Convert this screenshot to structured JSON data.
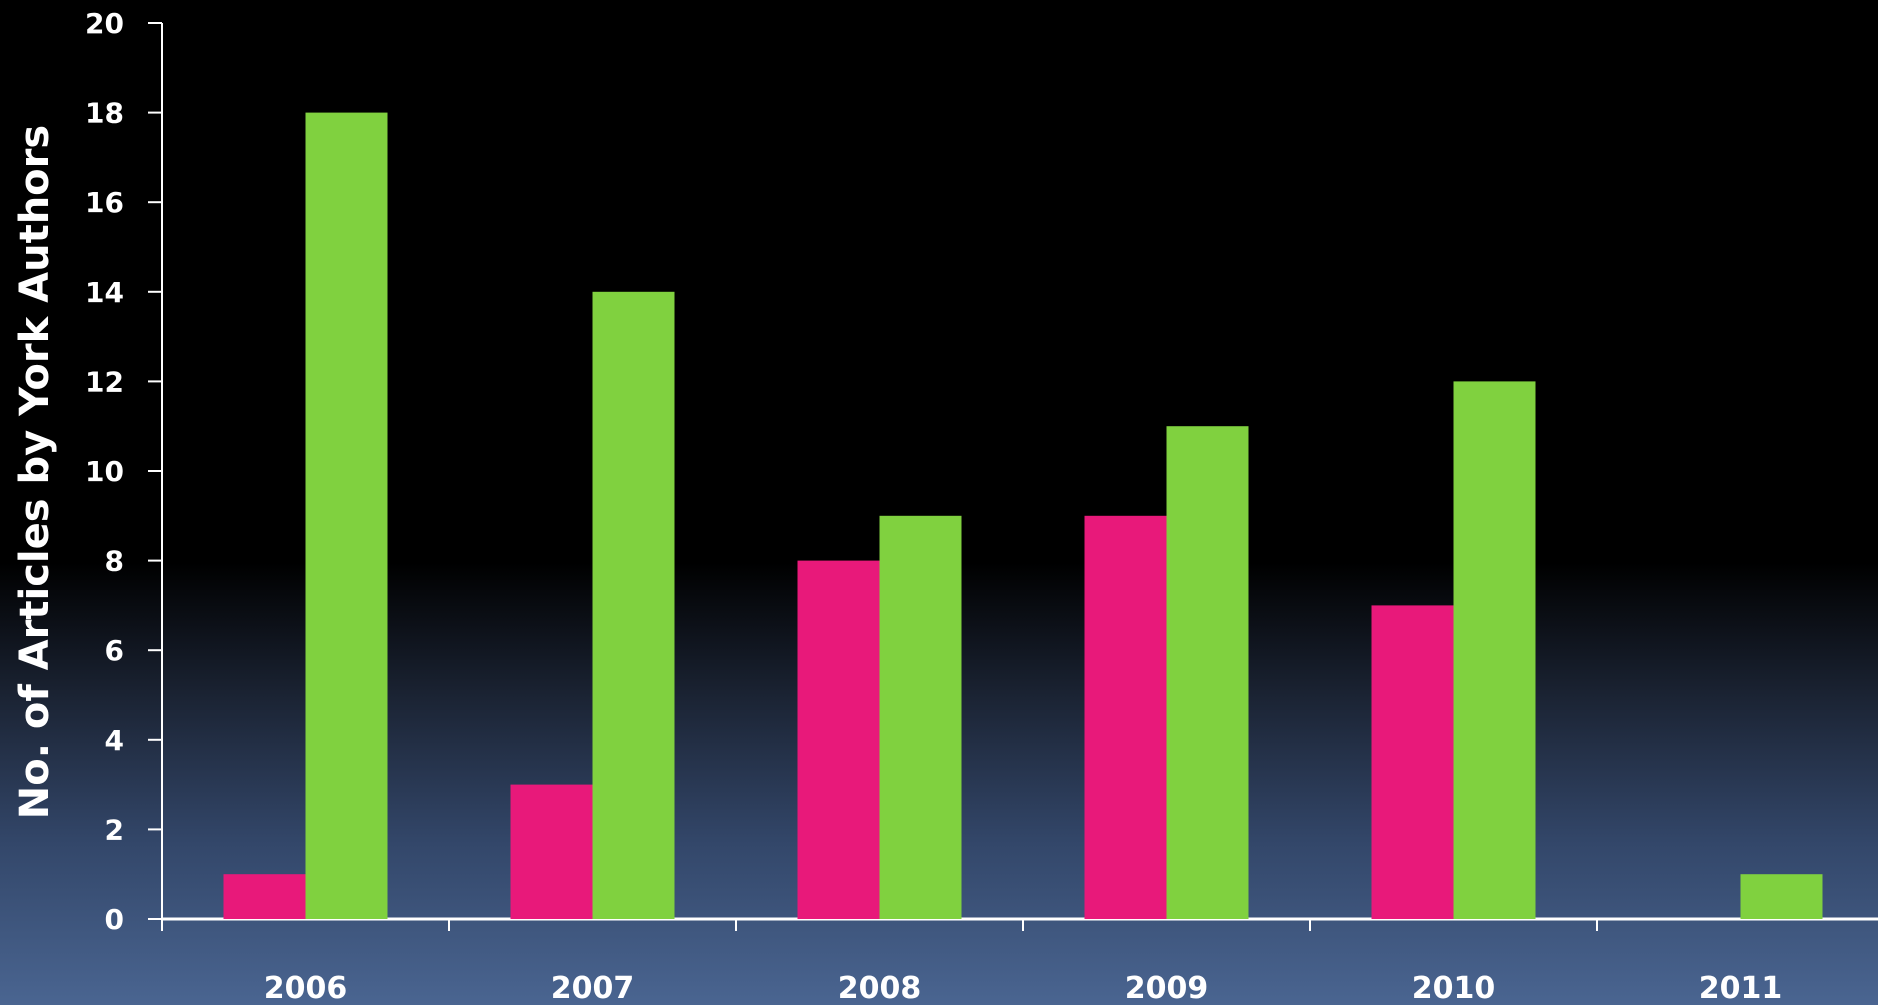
{
  "chart_data": {
    "type": "bar",
    "title": "",
    "xlabel": "",
    "ylabel": "No. of Articles by York Authors",
    "categories": [
      "2006",
      "2007",
      "2008",
      "2009",
      "2010",
      "2011"
    ],
    "series": [
      {
        "color": "#e8197a",
        "values": [
          1,
          3,
          8,
          9,
          7,
          0
        ]
      },
      {
        "color": "#80d13f",
        "values": [
          18,
          14,
          9,
          11,
          12,
          1
        ]
      }
    ],
    "ylim": [
      0,
      20
    ],
    "yticks": [
      0,
      2,
      4,
      6,
      8,
      10,
      12,
      14,
      16,
      18,
      20
    ],
    "grid": false,
    "legend": "none"
  }
}
